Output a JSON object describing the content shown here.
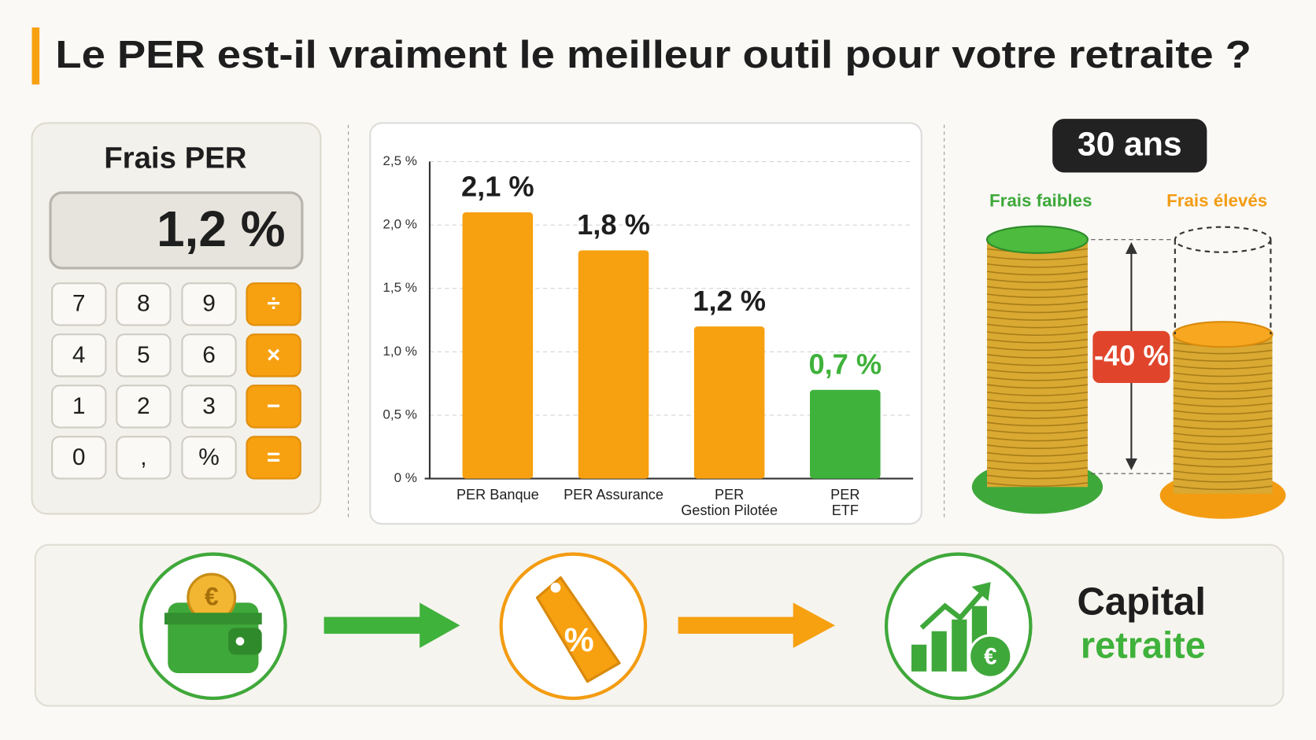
{
  "title": "Le PER est-il vraiment le meilleur outil pour votre retraite ?",
  "calculator": {
    "title": "Frais PER",
    "display": "1,2 %",
    "keys": [
      "7",
      "8",
      "9",
      "÷",
      "4",
      "5",
      "6",
      "×",
      "1",
      "2",
      "3",
      "−",
      "0",
      ",",
      "%",
      "="
    ]
  },
  "chart_data": {
    "type": "bar",
    "categories": [
      "PER Banque",
      "PER Assurance",
      "PER\nGestion Pilotée",
      "PER\nETF"
    ],
    "values": [
      2.1,
      1.8,
      1.2,
      0.7
    ],
    "value_labels": [
      "2,1 %",
      "1,8 %",
      "1,2 %",
      "0,7 %"
    ],
    "colors": [
      "#f7a010",
      "#f7a010",
      "#f7a010",
      "#3fb23b"
    ],
    "value_label_colors": [
      "#1e1e1e",
      "#1e1e1e",
      "#1e1e1e",
      "#3fb23b"
    ],
    "ylim": [
      0,
      2.5
    ],
    "yticks": [
      {
        "value": 0,
        "label": "0 %"
      },
      {
        "value": 0.5,
        "label": "0,5 %"
      },
      {
        "value": 1,
        "label": "1,0 %"
      },
      {
        "value": 1.5,
        "label": "1,5 %"
      },
      {
        "value": 2,
        "label": "2,0 %"
      },
      {
        "value": 2.5,
        "label": "2,5 %"
      }
    ],
    "grid": true
  },
  "comparison": {
    "duration": "30 ans",
    "low_fees": "Frais faibles",
    "high_fees": "Frais élevés",
    "difference": "-40 %"
  },
  "flow": {
    "coin_symbol": "€",
    "tag_symbol": "%",
    "result_line1": "Capital",
    "result_line2": "retraite"
  }
}
